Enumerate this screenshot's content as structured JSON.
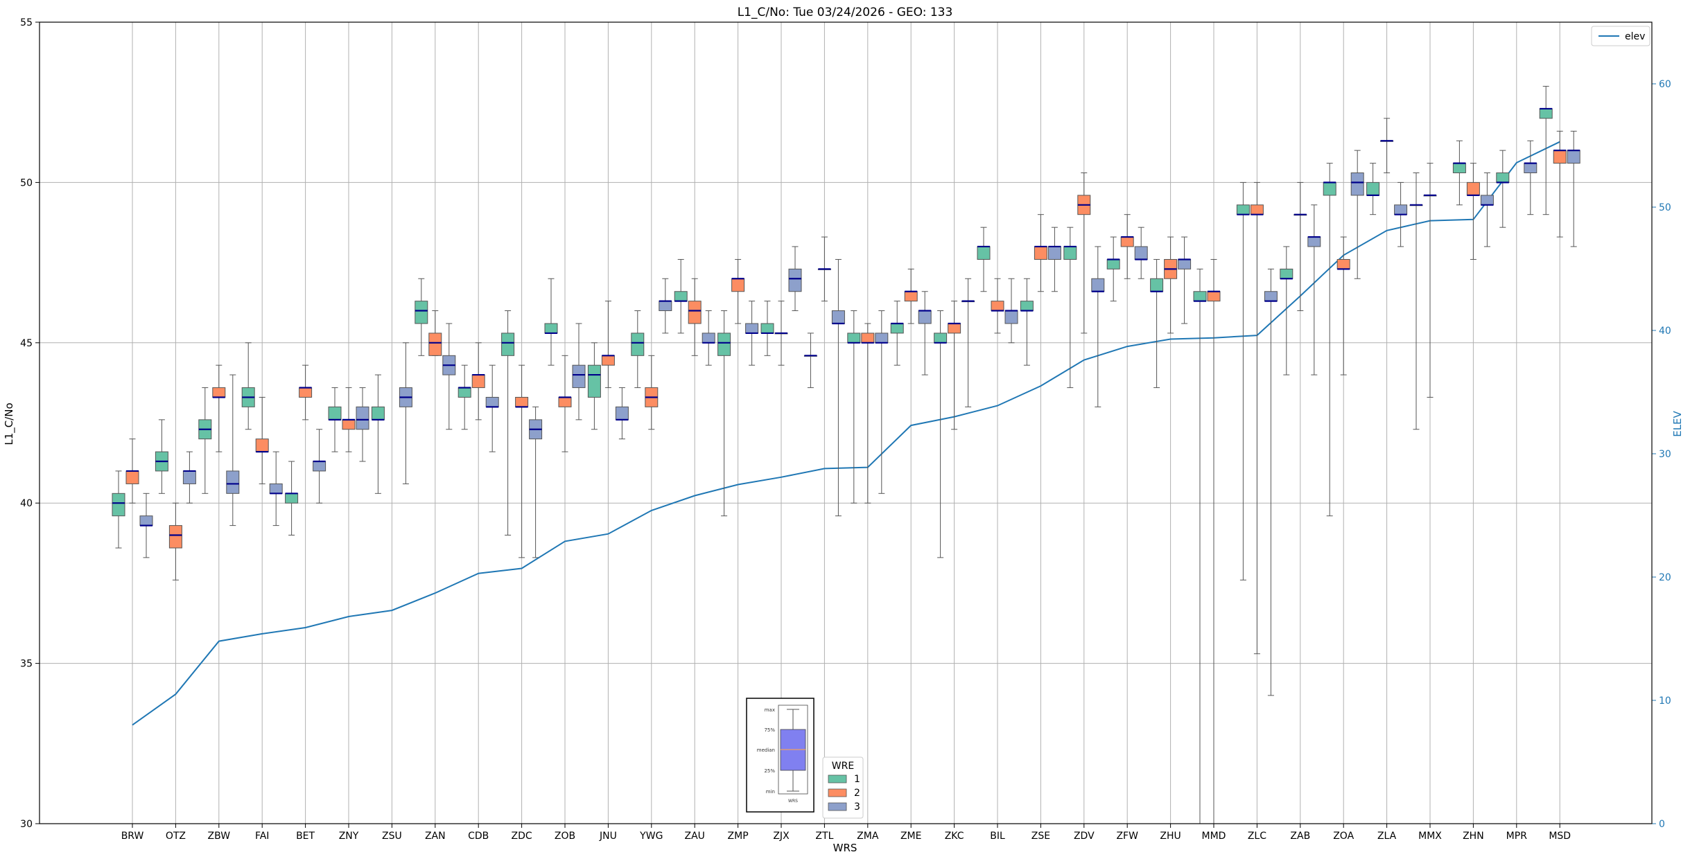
{
  "chart_data": {
    "type": "boxplot",
    "title": "L1_C/No: Tue 03/24/2026 - GEO: 133",
    "xlabel": "WRS",
    "ylabel": "L1_C/No",
    "y2label": "ELEV",
    "ylim": [
      30,
      55
    ],
    "y2lim": [
      0,
      65
    ],
    "yticks": [
      30,
      35,
      40,
      45,
      50,
      55
    ],
    "y2ticks": [
      0,
      10,
      20,
      30,
      40,
      50,
      60
    ],
    "grid": true,
    "colors": {
      "1": "#66c2a5",
      "2": "#fc8d62",
      "3": "#8da0cb",
      "median": "#00008b",
      "elev": "#1f77b4",
      "whisker": "#555555"
    },
    "categories": [
      "BRW",
      "OTZ",
      "ZBW",
      "FAI",
      "BET",
      "ZNY",
      "ZSU",
      "ZAN",
      "CDB",
      "ZDC",
      "ZOB",
      "JNU",
      "YWG",
      "ZAU",
      "ZMP",
      "ZJX",
      "ZTL",
      "ZMA",
      "ZME",
      "ZKC",
      "BIL",
      "ZSE",
      "ZDV",
      "ZFW",
      "ZHU",
      "MMD",
      "ZLC",
      "ZAB",
      "ZOA",
      "ZLA",
      "MMX",
      "ZHN",
      "MPR",
      "MSD"
    ],
    "elevation": [
      8.0,
      10.5,
      14.8,
      15.4,
      15.9,
      16.8,
      17.3,
      18.7,
      20.3,
      20.7,
      22.9,
      23.5,
      25.4,
      26.6,
      27.5,
      28.1,
      28.8,
      28.9,
      32.3,
      33.0,
      33.9,
      35.5,
      37.6,
      38.7,
      39.3,
      39.4,
      39.6,
      42.8,
      46.1,
      48.1,
      48.9,
      49.0,
      53.6,
      55.3
    ],
    "elev_legend": "elev",
    "wre_legend_title": "WRE",
    "wre_legend_labels": [
      "1",
      "2",
      "3"
    ],
    "key_labels": [
      "max",
      "75%",
      "median",
      "25%",
      "min",
      "WRS"
    ],
    "boxes": [
      {
        "wrs": "BRW",
        "wre": "1",
        "min": 38.6,
        "q1": 39.6,
        "med": 40.0,
        "q3": 40.3,
        "max": 41.0
      },
      {
        "wrs": "BRW",
        "wre": "2",
        "min": 40.0,
        "q1": 40.6,
        "med": 41.0,
        "q3": 41.0,
        "max": 42.0
      },
      {
        "wrs": "BRW",
        "wre": "3",
        "min": 38.3,
        "q1": 39.3,
        "med": 39.3,
        "q3": 39.6,
        "max": 40.3
      },
      {
        "wrs": "OTZ",
        "wre": "1",
        "min": 40.3,
        "q1": 41.0,
        "med": 41.3,
        "q3": 41.6,
        "max": 42.6
      },
      {
        "wrs": "OTZ",
        "wre": "2",
        "min": 37.6,
        "q1": 38.6,
        "med": 39.0,
        "q3": 39.3,
        "max": 40.0
      },
      {
        "wrs": "OTZ",
        "wre": "3",
        "min": 40.0,
        "q1": 40.6,
        "med": 41.0,
        "q3": 41.0,
        "max": 41.6
      },
      {
        "wrs": "ZBW",
        "wre": "1",
        "min": 40.3,
        "q1": 42.0,
        "med": 42.3,
        "q3": 42.6,
        "max": 43.6
      },
      {
        "wrs": "ZBW",
        "wre": "2",
        "min": 41.6,
        "q1": 43.3,
        "med": 43.3,
        "q3": 43.6,
        "max": 44.3
      },
      {
        "wrs": "ZBW",
        "wre": "3",
        "min": 39.3,
        "q1": 40.3,
        "med": 40.6,
        "q3": 41.0,
        "max": 44.0
      },
      {
        "wrs": "FAI",
        "wre": "1",
        "min": 42.3,
        "q1": 43.0,
        "med": 43.3,
        "q3": 43.6,
        "max": 45.0
      },
      {
        "wrs": "FAI",
        "wre": "2",
        "min": 40.6,
        "q1": 41.6,
        "med": 41.6,
        "q3": 42.0,
        "max": 43.3
      },
      {
        "wrs": "FAI",
        "wre": "3",
        "min": 39.3,
        "q1": 40.3,
        "med": 40.3,
        "q3": 40.6,
        "max": 41.6
      },
      {
        "wrs": "BET",
        "wre": "1",
        "min": 39.0,
        "q1": 40.0,
        "med": 40.3,
        "q3": 40.3,
        "max": 41.3
      },
      {
        "wrs": "BET",
        "wre": "2",
        "min": 42.6,
        "q1": 43.3,
        "med": 43.6,
        "q3": 43.6,
        "max": 44.3
      },
      {
        "wrs": "BET",
        "wre": "3",
        "min": 40.0,
        "q1": 41.0,
        "med": 41.3,
        "q3": 41.3,
        "max": 42.3
      },
      {
        "wrs": "ZNY",
        "wre": "1",
        "min": 41.6,
        "q1": 42.6,
        "med": 42.6,
        "q3": 43.0,
        "max": 43.6
      },
      {
        "wrs": "ZNY",
        "wre": "2",
        "min": 41.6,
        "q1": 42.3,
        "med": 42.6,
        "q3": 42.6,
        "max": 43.6
      },
      {
        "wrs": "ZNY",
        "wre": "3",
        "min": 41.3,
        "q1": 42.3,
        "med": 42.6,
        "q3": 43.0,
        "max": 43.6
      },
      {
        "wrs": "ZSU",
        "wre": "1",
        "min": 40.3,
        "q1": 42.6,
        "med": 42.6,
        "q3": 43.0,
        "max": 44.0
      },
      {
        "wrs": "ZSU",
        "wre": "3",
        "min": 40.6,
        "q1": 43.0,
        "med": 43.3,
        "q3": 43.6,
        "max": 45.0
      },
      {
        "wrs": "ZAN",
        "wre": "1",
        "min": 44.6,
        "q1": 45.6,
        "med": 46.0,
        "q3": 46.3,
        "max": 47.0
      },
      {
        "wrs": "ZAN",
        "wre": "2",
        "min": 44.6,
        "q1": 44.6,
        "med": 45.0,
        "q3": 45.3,
        "max": 46.0
      },
      {
        "wrs": "ZAN",
        "wre": "3",
        "min": 42.3,
        "q1": 44.0,
        "med": 44.3,
        "q3": 44.6,
        "max": 45.6
      },
      {
        "wrs": "CDB",
        "wre": "1",
        "min": 42.3,
        "q1": 43.3,
        "med": 43.6,
        "q3": 43.6,
        "max": 44.3
      },
      {
        "wrs": "CDB",
        "wre": "2",
        "min": 42.6,
        "q1": 43.6,
        "med": 44.0,
        "q3": 44.0,
        "max": 45.0
      },
      {
        "wrs": "CDB",
        "wre": "3",
        "min": 41.6,
        "q1": 43.0,
        "med": 43.0,
        "q3": 43.3,
        "max": 44.3
      },
      {
        "wrs": "ZDC",
        "wre": "1",
        "min": 39.0,
        "q1": 44.6,
        "med": 45.0,
        "q3": 45.3,
        "max": 46.0
      },
      {
        "wrs": "ZDC",
        "wre": "2",
        "min": 38.3,
        "q1": 43.0,
        "med": 43.0,
        "q3": 43.3,
        "max": 44.3
      },
      {
        "wrs": "ZDC",
        "wre": "3",
        "min": 38.3,
        "q1": 42.0,
        "med": 42.3,
        "q3": 42.6,
        "max": 43.0
      },
      {
        "wrs": "ZOB",
        "wre": "1",
        "min": 44.3,
        "q1": 45.3,
        "med": 45.3,
        "q3": 45.6,
        "max": 47.0
      },
      {
        "wrs": "ZOB",
        "wre": "2",
        "min": 41.6,
        "q1": 43.0,
        "med": 43.3,
        "q3": 43.3,
        "max": 44.6
      },
      {
        "wrs": "ZOB",
        "wre": "3",
        "min": 42.6,
        "q1": 43.6,
        "med": 44.0,
        "q3": 44.3,
        "max": 45.6
      },
      {
        "wrs": "JNU",
        "wre": "1",
        "min": 42.3,
        "q1": 43.3,
        "med": 44.0,
        "q3": 44.3,
        "max": 45.0
      },
      {
        "wrs": "JNU",
        "wre": "2",
        "min": 43.6,
        "q1": 44.3,
        "med": 44.6,
        "q3": 44.6,
        "max": 46.3
      },
      {
        "wrs": "JNU",
        "wre": "3",
        "min": 42.0,
        "q1": 42.6,
        "med": 42.6,
        "q3": 43.0,
        "max": 43.6
      },
      {
        "wrs": "YWG",
        "wre": "1",
        "min": 43.6,
        "q1": 44.6,
        "med": 45.0,
        "q3": 45.3,
        "max": 46.0
      },
      {
        "wrs": "YWG",
        "wre": "2",
        "min": 42.3,
        "q1": 43.0,
        "med": 43.3,
        "q3": 43.6,
        "max": 44.6
      },
      {
        "wrs": "YWG",
        "wre": "3",
        "min": 45.3,
        "q1": 46.0,
        "med": 46.3,
        "q3": 46.3,
        "max": 47.0
      },
      {
        "wrs": "ZAU",
        "wre": "1",
        "min": 45.3,
        "q1": 46.3,
        "med": 46.3,
        "q3": 46.6,
        "max": 47.6
      },
      {
        "wrs": "ZAU",
        "wre": "2",
        "min": 44.6,
        "q1": 45.6,
        "med": 46.0,
        "q3": 46.3,
        "max": 47.0
      },
      {
        "wrs": "ZAU",
        "wre": "3",
        "min": 44.3,
        "q1": 45.0,
        "med": 45.0,
        "q3": 45.3,
        "max": 46.0
      },
      {
        "wrs": "ZMP",
        "wre": "1",
        "min": 39.6,
        "q1": 44.6,
        "med": 45.0,
        "q3": 45.3,
        "max": 46.0
      },
      {
        "wrs": "ZMP",
        "wre": "2",
        "min": 45.6,
        "q1": 46.6,
        "med": 47.0,
        "q3": 47.0,
        "max": 47.6
      },
      {
        "wrs": "ZMP",
        "wre": "3",
        "min": 44.3,
        "q1": 45.3,
        "med": 45.3,
        "q3": 45.6,
        "max": 46.3
      },
      {
        "wrs": "ZJX",
        "wre": "1",
        "min": 44.6,
        "q1": 45.3,
        "med": 45.3,
        "q3": 45.6,
        "max": 46.3
      },
      {
        "wrs": "ZJX",
        "wre": "2",
        "min": 44.3,
        "q1": 45.3,
        "med": 45.3,
        "q3": 45.3,
        "max": 46.3
      },
      {
        "wrs": "ZJX",
        "wre": "3",
        "min": 46.0,
        "q1": 46.6,
        "med": 47.0,
        "q3": 47.3,
        "max": 48.0
      },
      {
        "wrs": "ZTL",
        "wre": "1",
        "min": 43.6,
        "q1": 44.6,
        "med": 44.6,
        "q3": 44.6,
        "max": 45.3
      },
      {
        "wrs": "ZTL",
        "wre": "2",
        "min": 46.3,
        "q1": 47.3,
        "med": 47.3,
        "q3": 47.3,
        "max": 48.3
      },
      {
        "wrs": "ZTL",
        "wre": "3",
        "min": 39.6,
        "q1": 45.6,
        "med": 45.6,
        "q3": 46.0,
        "max": 47.6
      },
      {
        "wrs": "ZMA",
        "wre": "1",
        "min": 40.0,
        "q1": 45.0,
        "med": 45.0,
        "q3": 45.3,
        "max": 46.0
      },
      {
        "wrs": "ZMA",
        "wre": "2",
        "min": 40.0,
        "q1": 45.0,
        "med": 45.0,
        "q3": 45.3,
        "max": 45.6
      },
      {
        "wrs": "ZMA",
        "wre": "3",
        "min": 40.3,
        "q1": 45.0,
        "med": 45.0,
        "q3": 45.3,
        "max": 46.0
      },
      {
        "wrs": "ZME",
        "wre": "1",
        "min": 44.3,
        "q1": 45.3,
        "med": 45.6,
        "q3": 45.6,
        "max": 46.3
      },
      {
        "wrs": "ZME",
        "wre": "2",
        "min": 45.6,
        "q1": 46.3,
        "med": 46.6,
        "q3": 46.6,
        "max": 47.3
      },
      {
        "wrs": "ZME",
        "wre": "3",
        "min": 44.0,
        "q1": 45.6,
        "med": 46.0,
        "q3": 46.0,
        "max": 46.6
      },
      {
        "wrs": "ZKC",
        "wre": "1",
        "min": 38.3,
        "q1": 45.0,
        "med": 45.0,
        "q3": 45.3,
        "max": 46.0
      },
      {
        "wrs": "ZKC",
        "wre": "2",
        "min": 42.3,
        "q1": 45.3,
        "med": 45.6,
        "q3": 45.6,
        "max": 46.3
      },
      {
        "wrs": "ZKC",
        "wre": "3",
        "min": 43.0,
        "q1": 46.3,
        "med": 46.3,
        "q3": 46.3,
        "max": 47.0
      },
      {
        "wrs": "BIL",
        "wre": "1",
        "min": 46.6,
        "q1": 47.6,
        "med": 48.0,
        "q3": 48.0,
        "max": 48.6
      },
      {
        "wrs": "BIL",
        "wre": "2",
        "min": 45.3,
        "q1": 46.0,
        "med": 46.0,
        "q3": 46.3,
        "max": 47.0
      },
      {
        "wrs": "BIL",
        "wre": "3",
        "min": 45.0,
        "q1": 45.6,
        "med": 46.0,
        "q3": 46.0,
        "max": 47.0
      },
      {
        "wrs": "ZSE",
        "wre": "1",
        "min": 44.3,
        "q1": 46.0,
        "med": 46.0,
        "q3": 46.3,
        "max": 47.0
      },
      {
        "wrs": "ZSE",
        "wre": "2",
        "min": 46.6,
        "q1": 47.6,
        "med": 48.0,
        "q3": 48.0,
        "max": 49.0
      },
      {
        "wrs": "ZSE",
        "wre": "3",
        "min": 46.6,
        "q1": 47.6,
        "med": 48.0,
        "q3": 48.0,
        "max": 48.6
      },
      {
        "wrs": "ZDV",
        "wre": "1",
        "min": 43.6,
        "q1": 47.6,
        "med": 48.0,
        "q3": 48.0,
        "max": 48.6
      },
      {
        "wrs": "ZDV",
        "wre": "2",
        "min": 45.3,
        "q1": 49.0,
        "med": 49.3,
        "q3": 49.6,
        "max": 50.3
      },
      {
        "wrs": "ZDV",
        "wre": "3",
        "min": 43.0,
        "q1": 46.6,
        "med": 46.6,
        "q3": 47.0,
        "max": 48.0
      },
      {
        "wrs": "ZFW",
        "wre": "1",
        "min": 46.3,
        "q1": 47.3,
        "med": 47.6,
        "q3": 47.6,
        "max": 48.3
      },
      {
        "wrs": "ZFW",
        "wre": "2",
        "min": 47.0,
        "q1": 48.0,
        "med": 48.3,
        "q3": 48.3,
        "max": 49.0
      },
      {
        "wrs": "ZFW",
        "wre": "3",
        "min": 47.0,
        "q1": 47.6,
        "med": 47.6,
        "q3": 48.0,
        "max": 48.6
      },
      {
        "wrs": "ZHU",
        "wre": "1",
        "min": 43.6,
        "q1": 46.6,
        "med": 46.6,
        "q3": 47.0,
        "max": 47.6
      },
      {
        "wrs": "ZHU",
        "wre": "2",
        "min": 45.3,
        "q1": 47.0,
        "med": 47.3,
        "q3": 47.6,
        "max": 48.3
      },
      {
        "wrs": "ZHU",
        "wre": "3",
        "min": 45.6,
        "q1": 47.3,
        "med": 47.6,
        "q3": 47.6,
        "max": 48.3
      },
      {
        "wrs": "MMD",
        "wre": "1",
        "min": 30.0,
        "q1": 46.3,
        "med": 46.3,
        "q3": 46.6,
        "max": 47.3
      },
      {
        "wrs": "MMD",
        "wre": "2",
        "min": 30.0,
        "q1": 46.3,
        "med": 46.6,
        "q3": 46.6,
        "max": 47.6
      },
      {
        "wrs": "ZLC",
        "wre": "1",
        "min": 37.6,
        "q1": 49.0,
        "med": 49.0,
        "q3": 49.3,
        "max": 50.0
      },
      {
        "wrs": "ZLC",
        "wre": "2",
        "min": 35.3,
        "q1": 49.0,
        "med": 49.0,
        "q3": 49.3,
        "max": 50.0
      },
      {
        "wrs": "ZLC",
        "wre": "3",
        "min": 34.0,
        "q1": 46.3,
        "med": 46.3,
        "q3": 46.6,
        "max": 47.3
      },
      {
        "wrs": "ZAB",
        "wre": "1",
        "min": 44.0,
        "q1": 47.0,
        "med": 47.0,
        "q3": 47.3,
        "max": 48.0
      },
      {
        "wrs": "ZAB",
        "wre": "2",
        "min": 46.0,
        "q1": 49.0,
        "med": 49.0,
        "q3": 49.0,
        "max": 50.0
      },
      {
        "wrs": "ZAB",
        "wre": "3",
        "min": 44.0,
        "q1": 48.0,
        "med": 48.3,
        "q3": 48.3,
        "max": 49.3
      },
      {
        "wrs": "ZOA",
        "wre": "1",
        "min": 39.6,
        "q1": 49.6,
        "med": 50.0,
        "q3": 50.0,
        "max": 50.6
      },
      {
        "wrs": "ZOA",
        "wre": "2",
        "min": 44.0,
        "q1": 47.3,
        "med": 47.3,
        "q3": 47.6,
        "max": 48.3
      },
      {
        "wrs": "ZOA",
        "wre": "3",
        "min": 47.0,
        "q1": 49.6,
        "med": 50.0,
        "q3": 50.3,
        "max": 51.0
      },
      {
        "wrs": "ZLA",
        "wre": "1",
        "min": 49.0,
        "q1": 49.6,
        "med": 49.6,
        "q3": 50.0,
        "max": 50.6
      },
      {
        "wrs": "ZLA",
        "wre": "2",
        "min": 50.3,
        "q1": 51.3,
        "med": 51.3,
        "q3": 51.3,
        "max": 52.0
      },
      {
        "wrs": "ZLA",
        "wre": "3",
        "min": 48.0,
        "q1": 49.0,
        "med": 49.0,
        "q3": 49.3,
        "max": 50.0
      },
      {
        "wrs": "MMX",
        "wre": "1",
        "min": 42.3,
        "q1": 49.3,
        "med": 49.3,
        "q3": 49.3,
        "max": 50.3
      },
      {
        "wrs": "MMX",
        "wre": "2",
        "min": 43.3,
        "q1": 49.6,
        "med": 49.6,
        "q3": 49.6,
        "max": 50.6
      },
      {
        "wrs": "ZHN",
        "wre": "1",
        "min": 49.3,
        "q1": 50.3,
        "med": 50.6,
        "q3": 50.6,
        "max": 51.3
      },
      {
        "wrs": "ZHN",
        "wre": "2",
        "min": 47.6,
        "q1": 49.6,
        "med": 49.6,
        "q3": 50.0,
        "max": 50.6
      },
      {
        "wrs": "ZHN",
        "wre": "3",
        "min": 48.0,
        "q1": 49.3,
        "med": 49.3,
        "q3": 49.6,
        "max": 50.3
      },
      {
        "wrs": "MPR",
        "wre": "1",
        "min": 48.6,
        "q1": 50.0,
        "med": 50.0,
        "q3": 50.3,
        "max": 51.0
      },
      {
        "wrs": "MPR",
        "wre": "3",
        "min": 49.0,
        "q1": 50.3,
        "med": 50.6,
        "q3": 50.6,
        "max": 51.3
      },
      {
        "wrs": "MSD",
        "wre": "1",
        "min": 49.0,
        "q1": 52.0,
        "med": 52.3,
        "q3": 52.3,
        "max": 53.0
      },
      {
        "wrs": "MSD",
        "wre": "2",
        "min": 48.3,
        "q1": 50.6,
        "med": 51.0,
        "q3": 51.0,
        "max": 51.6
      },
      {
        "wrs": "MSD",
        "wre": "3",
        "min": 48.0,
        "q1": 50.6,
        "med": 51.0,
        "q3": 51.0,
        "max": 51.6
      }
    ]
  }
}
